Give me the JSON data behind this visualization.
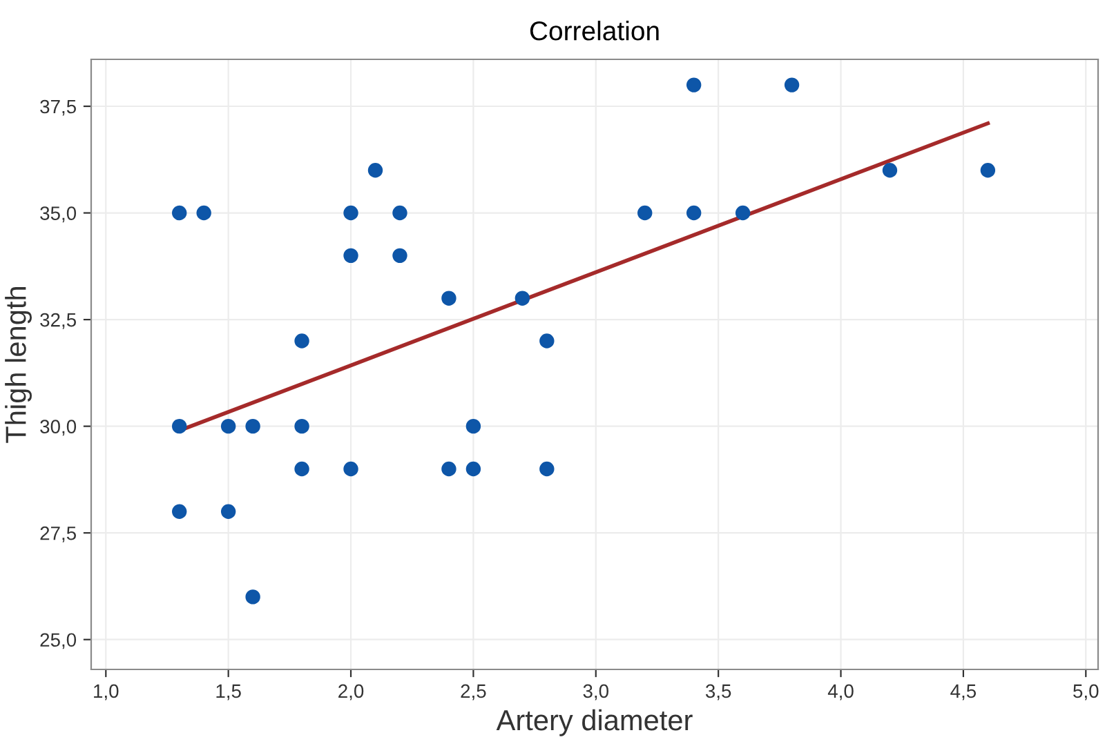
{
  "chart_data": {
    "type": "scatter",
    "title": "Correlation",
    "xlabel": "Artery diameter",
    "ylabel": "Thigh length",
    "series": [
      {
        "color": "#0e56a8",
        "x": [
          1.3,
          1.4,
          1.3,
          1.3,
          1.5,
          1.5,
          1.6,
          1.6,
          1.8,
          1.8,
          1.8,
          2.0,
          2.0,
          2.0,
          2.1,
          2.2,
          2.2,
          2.4,
          2.4,
          2.5,
          2.5,
          2.7,
          2.8,
          2.8,
          3.2,
          3.4,
          3.4,
          3.6,
          3.8,
          4.2,
          4.6
        ],
        "values": [
          35,
          35,
          30,
          28,
          30,
          28,
          30,
          26,
          32,
          30,
          29,
          35,
          34,
          29,
          36,
          35,
          34,
          33,
          29,
          30,
          29,
          33,
          32,
          29,
          35,
          38,
          35,
          35,
          38,
          36,
          36
        ]
      },
      {
        "type": "line",
        "marker": "none",
        "color": "#a52a2a",
        "x": [
          1.3,
          4.6
        ],
        "values": [
          29.9,
          37.1
        ]
      }
    ],
    "xlim": [
      0.94,
      5.05
    ],
    "ylim": [
      24.3,
      38.6
    ],
    "xticks": [
      {
        "value": 1.0,
        "label": "1,0"
      },
      {
        "value": 1.5,
        "label": "1,5"
      },
      {
        "value": 2.0,
        "label": "2,0"
      },
      {
        "value": 2.5,
        "label": "2,5"
      },
      {
        "value": 3.0,
        "label": "3,0"
      },
      {
        "value": 3.5,
        "label": "3,5"
      },
      {
        "value": 4.0,
        "label": "4,0"
      },
      {
        "value": 4.5,
        "label": "4,5"
      },
      {
        "value": 5.0,
        "label": "5,0"
      }
    ],
    "yticks": [
      {
        "value": 25.0,
        "label": "25,0"
      },
      {
        "value": 27.5,
        "label": "27,5"
      },
      {
        "value": 30.0,
        "label": "30,0"
      },
      {
        "value": 32.5,
        "label": "32,5"
      },
      {
        "value": 35.0,
        "label": "35,0"
      },
      {
        "value": 37.5,
        "label": "37,5"
      }
    ],
    "grid": true,
    "marker": "circle"
  }
}
